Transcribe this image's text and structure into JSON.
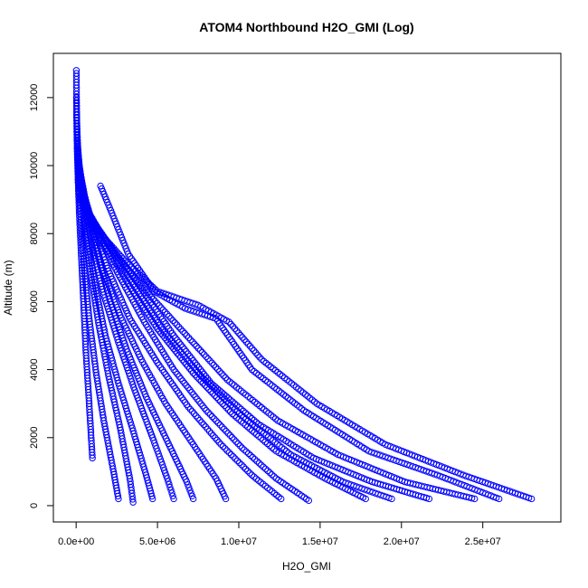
{
  "chart_data": {
    "type": "scatter",
    "title": "ATOM4 Northbound H2O_GMI (Log)",
    "xlabel": "H2O_GMI",
    "ylabel": "Altitude (m)",
    "xlim": [
      -1400000,
      29800000
    ],
    "ylim": [
      -480,
      13300
    ],
    "x_ticks": [
      0,
      5000000,
      10000000,
      15000000,
      20000000,
      25000000
    ],
    "x_tick_labels": [
      "0.0e+00",
      "5.0e+06",
      "1.0e+07",
      "1.5e+07",
      "2.0e+07",
      "2.5e+07"
    ],
    "y_ticks": [
      0,
      2000,
      4000,
      6000,
      8000,
      10000,
      12000
    ],
    "y_tick_labels": [
      "0",
      "2000",
      "4000",
      "6000",
      "8000",
      "10000",
      "12000"
    ],
    "grid": false,
    "marker": "open-circle",
    "color": "#0000ff",
    "profiles": [
      {
        "x": [
          15000,
          30000,
          60000,
          120000,
          200000,
          300000,
          450000,
          600000,
          800000,
          1000000
        ],
        "y": [
          12800,
          11500,
          10500,
          9500,
          8500,
          7500,
          6000,
          4500,
          3000,
          1400
        ]
      },
      {
        "x": [
          20000,
          60000,
          150000,
          300000,
          500000,
          800000,
          1200000,
          1700000,
          2300000,
          2600000
        ],
        "y": [
          12000,
          10800,
          9600,
          8400,
          7000,
          5500,
          4000,
          2500,
          1000,
          200
        ]
      },
      {
        "x": [
          30000,
          100000,
          250000,
          500000,
          900000,
          1400000,
          2000000,
          2700000,
          3300000,
          3500000
        ],
        "y": [
          11500,
          10500,
          9500,
          8200,
          6800,
          5300,
          3800,
          2300,
          800,
          100
        ]
      },
      {
        "x": [
          40000,
          150000,
          350000,
          700000,
          1200000,
          1800000,
          2600000,
          3500000,
          4300000,
          4700000
        ],
        "y": [
          11000,
          10200,
          9200,
          7900,
          6400,
          5000,
          3600,
          2200,
          900,
          200
        ]
      },
      {
        "x": [
          50000,
          200000,
          500000,
          1000000,
          1700000,
          2600000,
          3600000,
          4700000,
          5600000,
          6000000
        ],
        "y": [
          10800,
          10000,
          9000,
          7600,
          6200,
          4800,
          3400,
          2000,
          800,
          200
        ]
      },
      {
        "x": [
          60000,
          250000,
          650000,
          1300000,
          2100000,
          3100000,
          4300000,
          5600000,
          6800000,
          7200000
        ],
        "y": [
          10500,
          9800,
          8800,
          7400,
          6000,
          4600,
          3200,
          1900,
          700,
          200
        ]
      },
      {
        "x": [
          80000,
          300000,
          800000,
          1600000,
          2700000,
          4000000,
          5500000,
          7200000,
          8600000,
          9200000
        ],
        "y": [
          10200,
          9500,
          8500,
          7000,
          5600,
          4300,
          3000,
          1800,
          800,
          200
        ]
      },
      {
        "x": [
          100000,
          400000,
          1000000,
          2000000,
          3300000,
          5000000,
          6900000,
          8900000,
          10800000,
          12600000
        ],
        "y": [
          10000,
          9300,
          8300,
          6900,
          5500,
          4200,
          2900,
          1800,
          900,
          200
        ]
      },
      {
        "x": [
          120000,
          500000,
          1300000,
          2600000,
          4200000,
          6000000,
          8000000,
          10200000,
          12300000,
          14300000
        ],
        "y": [
          9800,
          9000,
          8000,
          6800,
          5400,
          4000,
          2800,
          1700,
          800,
          150
        ]
      },
      {
        "x": [
          150000,
          600000,
          1600000,
          3100000,
          5000000,
          7200000,
          9600000,
          12300000,
          15300000,
          17800000
        ],
        "y": [
          9500,
          8800,
          7800,
          6600,
          5200,
          3900,
          2700,
          1600,
          800,
          200
        ]
      },
      {
        "x": [
          200000,
          800000,
          1900000,
          3500000,
          5400000,
          7700000,
          10300000,
          13200000,
          16400000,
          19400000
        ],
        "y": [
          9200,
          8600,
          7700,
          6500,
          5100,
          3800,
          2600,
          1500,
          700,
          200
        ]
      },
      {
        "x": [
          300000,
          1000000,
          2300000,
          4000000,
          6000000,
          8300000,
          11200000,
          14600000,
          18200000,
          21700000
        ],
        "y": [
          9000,
          8400,
          7500,
          6400,
          5000,
          3600,
          2400,
          1400,
          700,
          200
        ]
      },
      {
        "x": [
          400000,
          1200000,
          2600000,
          4500000,
          6800000,
          9300000,
          12400000,
          16100000,
          20200000,
          24500000
        ],
        "y": [
          8800,
          8200,
          7300,
          6200,
          5000,
          3700,
          2500,
          1500,
          700,
          200
        ]
      },
      {
        "x": [
          1500000,
          2200000,
          3200000,
          4800000,
          6700000,
          8600000,
          10800000,
          14000000,
          18000000,
          22200000,
          26000000
        ],
        "y": [
          9400,
          8600,
          7400,
          6300,
          5800,
          5500,
          4000,
          2800,
          1600,
          900,
          200
        ]
      },
      {
        "x": [
          500000,
          1500000,
          3000000,
          5000000,
          7500000,
          9400000,
          11400000,
          14800000,
          19000000,
          23800000,
          28000000
        ],
        "y": [
          8600,
          8000,
          7200,
          6300,
          5900,
          5400,
          4300,
          3000,
          1800,
          900,
          200
        ]
      }
    ]
  }
}
